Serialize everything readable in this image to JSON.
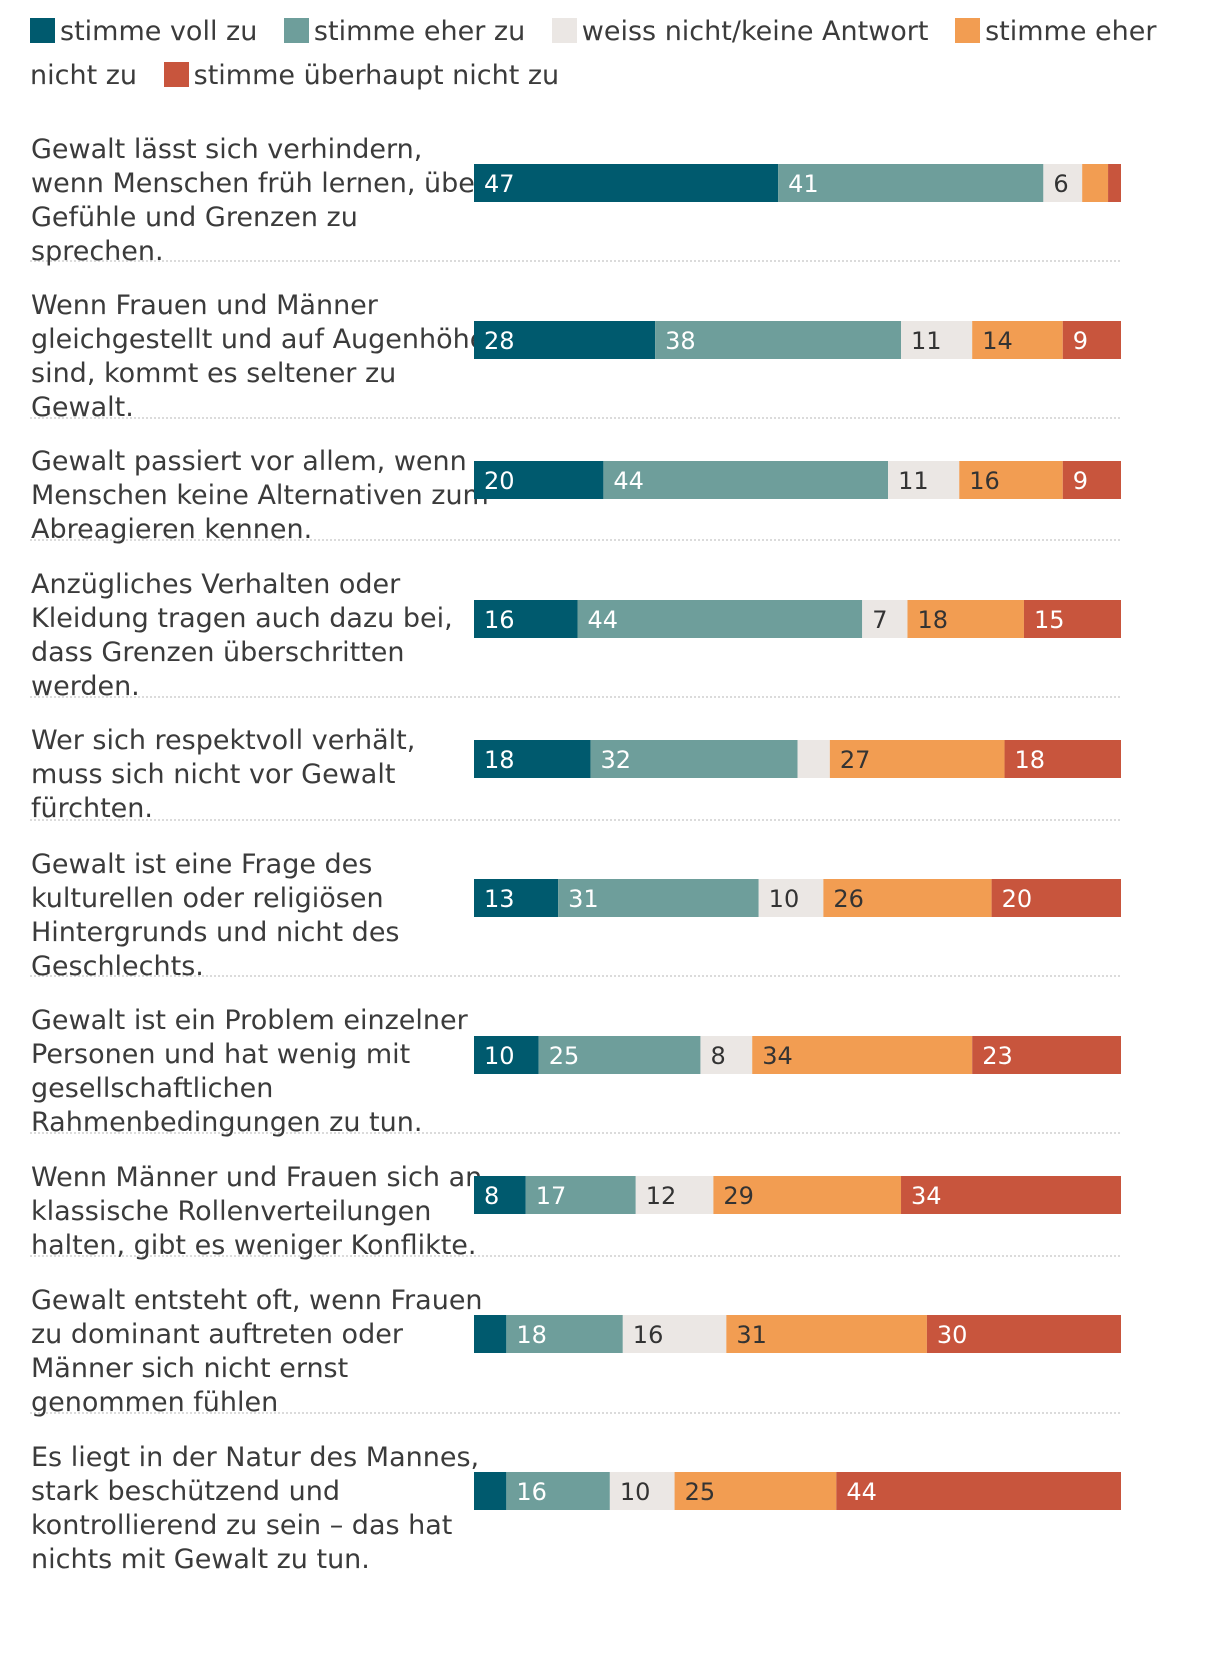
{
  "chart_data": {
    "type": "bar",
    "orientation": "horizontal",
    "stacked": true,
    "unit": "%",
    "colors": {
      "stimme_voll_zu": "#005a6e",
      "stimme_eher_zu": "#6e9e9b",
      "weiss_nicht": "#ebe7e4",
      "stimme_eher_nicht_zu": "#f29d52",
      "stimme_ueberhaupt_nicht_zu": "#c8553d"
    },
    "legend": [
      {
        "key": "stimme_voll_zu",
        "label": "stimme voll zu"
      },
      {
        "key": "stimme_eher_zu",
        "label": "stimme eher zu"
      },
      {
        "key": "weiss_nicht",
        "label": "weiss nicht/keine Antwort"
      },
      {
        "key": "stimme_eher_nicht_zu",
        "label": "stimme eher nicht zu"
      },
      {
        "key": "stimme_ueberhaupt_nicht_zu",
        "label": "stimme überhaupt nicht zu"
      }
    ],
    "categories": [
      "Gewalt lässt sich verhindern, wenn Menschen früh lernen, über Gefühle und Grenzen zu sprechen.",
      "Wenn Frauen und Männer gleichgestellt und auf Augenhöhe sind, kommt es seltener zu Gewalt.",
      "Gewalt passiert vor allem, wenn Menschen keine Alternativen zum Abreagieren kennen.",
      "Anzügliches Verhalten oder Kleidung tragen auch dazu bei, dass Grenzen überschritten werden.",
      "Wer sich respektvoll verhält, muss sich nicht vor Gewalt fürchten.",
      "Gewalt ist eine Frage des kulturellen oder religiösen Hintergrunds und nicht des Geschlechts.",
      "Gewalt ist ein Problem einzelner Personen und hat wenig mit gesellschaftlichen Rahmenbedingungen zu tun.",
      "Wenn Männer und Frauen sich an klassische Rollenverteilungen halten, gibt es weniger Konflikte.",
      "Gewalt entsteht oft, wenn Frauen zu dominant auftreten oder Männer sich nicht ernst genommen fühlen",
      "Es liegt in der Natur des Mannes, stark beschützend und kontrollierend zu sein – das hat nichts mit Gewalt zu tun."
    ],
    "category_lines": [
      [
        "Gewalt lässt sich verhindern,",
        "wenn Menschen früh lernen, über",
        "Gefühle und Grenzen zu",
        "sprechen."
      ],
      [
        "Wenn Frauen und Männer",
        "gleichgestellt und auf Augenhöhe",
        "sind, kommt es seltener zu",
        "Gewalt."
      ],
      [
        "Gewalt passiert vor allem, wenn",
        "Menschen keine Alternativen zum",
        "Abreagieren kennen."
      ],
      [
        "Anzügliches Verhalten oder",
        "Kleidung tragen auch dazu bei,",
        "dass Grenzen überschritten",
        "werden."
      ],
      [
        "Wer sich respektvoll verhält,",
        "muss sich nicht vor Gewalt",
        "fürchten."
      ],
      [
        "Gewalt ist eine Frage des",
        "kulturellen oder religiösen",
        "Hintergrunds und nicht des",
        "Geschlechts."
      ],
      [
        "Gewalt ist ein Problem einzelner",
        "Personen und hat wenig mit",
        "gesellschaftlichen",
        "Rahmenbedingungen zu tun."
      ],
      [
        "Wenn Männer und Frauen sich an",
        "klassische Rollenverteilungen",
        "halten, gibt es weniger Konflikte."
      ],
      [
        "Gewalt entsteht oft, wenn Frauen",
        "zu dominant auftreten oder",
        "Männer sich nicht ernst",
        "genommen fühlen"
      ],
      [
        "Es liegt in der Natur des Mannes,",
        "stark beschützend und",
        "kontrollierend zu sein – das hat",
        "nichts mit Gewalt zu tun."
      ]
    ],
    "series": [
      {
        "name": "stimme voll zu",
        "key": "stimme_voll_zu",
        "values": [
          47,
          28,
          20,
          16,
          18,
          13,
          10,
          8,
          5,
          5
        ],
        "labels": [
          "47",
          "28",
          "20",
          "16",
          "18",
          "13",
          "10",
          "8",
          "",
          ""
        ]
      },
      {
        "name": "stimme eher zu",
        "key": "stimme_eher_zu",
        "values": [
          41,
          38,
          44,
          44,
          32,
          31,
          25,
          17,
          18,
          16
        ],
        "labels": [
          "41",
          "38",
          "44",
          "44",
          "32",
          "31",
          "25",
          "17",
          "18",
          "16"
        ]
      },
      {
        "name": "weiss nicht/keine Antwort",
        "key": "weiss_nicht",
        "values": [
          6,
          11,
          11,
          7,
          5,
          10,
          8,
          12,
          16,
          10
        ],
        "labels": [
          "6",
          "11",
          "11",
          "7",
          "",
          "10",
          "8",
          "12",
          "16",
          "10"
        ]
      },
      {
        "name": "stimme eher nicht zu",
        "key": "stimme_eher_nicht_zu",
        "values": [
          4,
          14,
          16,
          18,
          27,
          26,
          34,
          29,
          31,
          25
        ],
        "labels": [
          "",
          "14",
          "16",
          "18",
          "27",
          "26",
          "34",
          "29",
          "31",
          "25"
        ]
      },
      {
        "name": "stimme überhaupt nicht zu",
        "key": "stimme_ueberhaupt_nicht_zu",
        "values": [
          2,
          9,
          9,
          15,
          18,
          20,
          23,
          34,
          30,
          44
        ],
        "labels": [
          "",
          "9",
          "9",
          "15",
          "18",
          "20",
          "23",
          "34",
          "30",
          "44"
        ]
      }
    ]
  }
}
